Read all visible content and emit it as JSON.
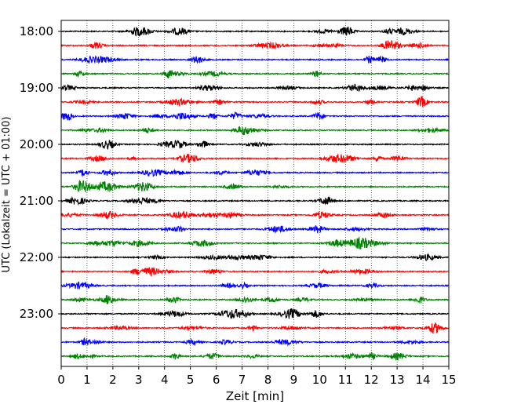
{
  "chart_data": {
    "type": "line",
    "title": "",
    "xlabel": "Zeit  [min]",
    "ylabel": "UTC (Lokalzeit = UTC + 01:00)",
    "xlim": [
      0,
      15
    ],
    "x_ticks": [
      "0",
      "1",
      "2",
      "3",
      "4",
      "5",
      "6",
      "7",
      "8",
      "9",
      "10",
      "11",
      "12",
      "13",
      "14",
      "15"
    ],
    "y_ticks": [
      "18:00",
      "19:00",
      "20:00",
      "21:00",
      "22:00",
      "23:00"
    ],
    "ylim": [
      "18:00",
      "24:00"
    ],
    "grid": "vertical dotted lines at each minute",
    "trace_interval_minutes": 15,
    "trace_start_times": [
      "18:00",
      "18:15",
      "18:30",
      "18:45",
      "19:00",
      "19:15",
      "19:30",
      "19:45",
      "20:00",
      "20:15",
      "20:30",
      "20:45",
      "21:00",
      "21:15",
      "21:30",
      "21:45",
      "22:00",
      "22:15",
      "22:30",
      "22:45",
      "23:00",
      "23:15",
      "23:30",
      "23:45"
    ],
    "trace_colors": [
      "#000000",
      "#ff0000",
      "#0000ff",
      "#008000"
    ],
    "legend": "none"
  }
}
